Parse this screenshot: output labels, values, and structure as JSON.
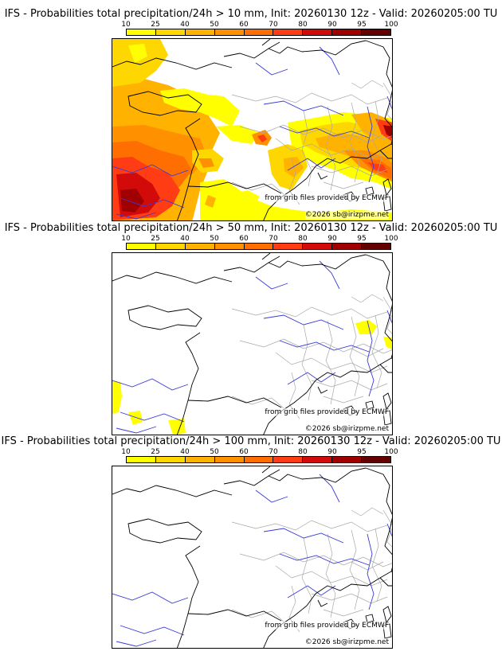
{
  "panels": [
    {
      "title": "IFS - Probabilities total precipitation/24h > 10 mm, Init: 20260130 12z - Valid: 20260205:00 TU",
      "threshold": "10 mm"
    },
    {
      "title": "IFS - Probabilities total precipitation/24h > 50 mm, Init: 20260130 12z - Valid: 20260205:00 TU",
      "threshold": "50 mm"
    },
    {
      "title": "IFS - Probabilities total precipitation/24h > 100 mm, Init: 20260130 12z - Valid: 20260205:00 TU",
      "threshold": "100 mm"
    }
  ],
  "scale": {
    "labels": [
      "10",
      "25",
      "40",
      "50",
      "60",
      "70",
      "80",
      "90",
      "95",
      "100"
    ],
    "colors": [
      "#ffff00",
      "#ffd700",
      "#ffb300",
      "#ff9100",
      "#ff6e00",
      "#ff3c14",
      "#d20a0a",
      "#a00000",
      "#640000"
    ]
  },
  "credits": {
    "source": "from grib files provided by ECMWF",
    "copyright": "©2026 sb@irizpme.net"
  },
  "colors": {
    "coast": "#000000",
    "rivers": "#3030d0",
    "borders": "#a0a0a0"
  }
}
